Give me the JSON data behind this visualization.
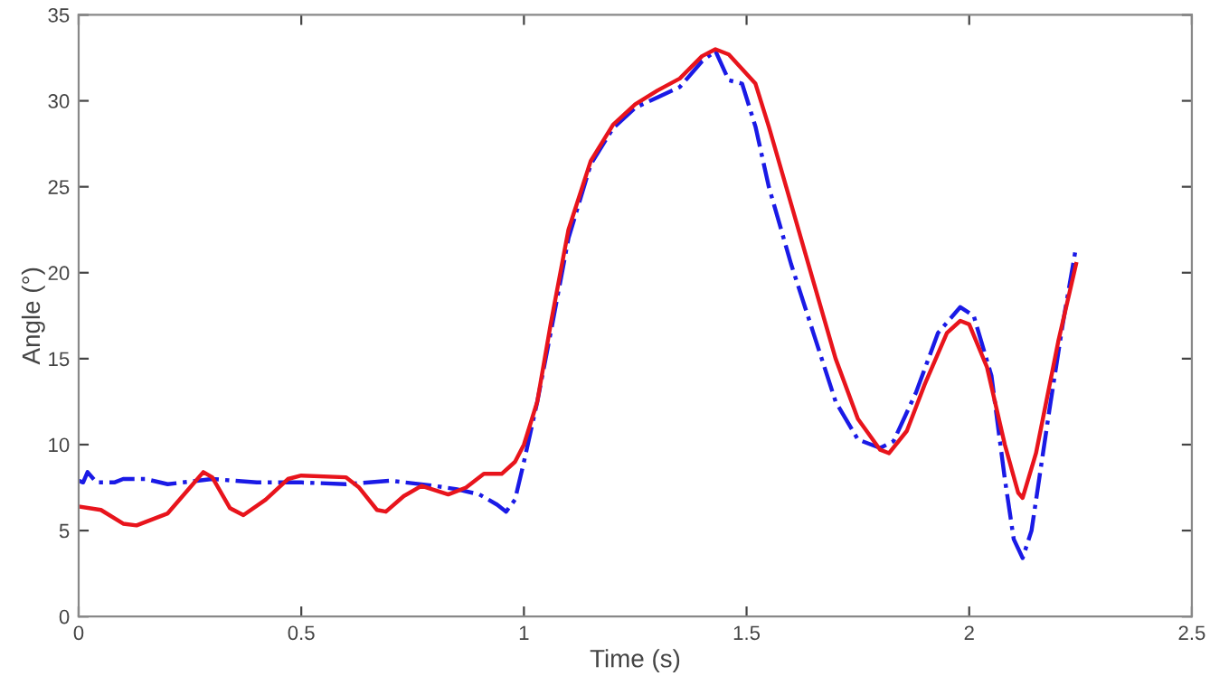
{
  "chart_data": {
    "type": "line",
    "xlabel": "Time (s)",
    "ylabel": "Angle (°)",
    "xlim": [
      0,
      2.5
    ],
    "xticks": [
      0,
      0.5,
      1,
      1.5,
      2,
      2.5
    ],
    "ylim": [
      0,
      35
    ],
    "yticks": [
      0,
      5,
      10,
      15,
      20,
      25,
      30,
      35
    ],
    "grid": false,
    "legend": false,
    "marker": "none",
    "series": [
      {
        "color": "#1a1ae6",
        "line_style": "dashed",
        "x": [
          0,
          0.01,
          0.02,
          0.04,
          0.08,
          0.1,
          0.15,
          0.2,
          0.3,
          0.4,
          0.5,
          0.6,
          0.7,
          0.8,
          0.85,
          0.9,
          0.94,
          0.96,
          0.98,
          1.0,
          1.03,
          1.06,
          1.1,
          1.15,
          1.2,
          1.25,
          1.3,
          1.35,
          1.4,
          1.43,
          1.46,
          1.49,
          1.52,
          1.55,
          1.6,
          1.65,
          1.7,
          1.75,
          1.8,
          1.83,
          1.88,
          1.93,
          1.98,
          2.01,
          2.05,
          2.08,
          2.1,
          2.12,
          2.14,
          2.18,
          2.21,
          2.24
        ],
        "values": [
          7.9,
          7.8,
          8.4,
          7.8,
          7.8,
          8.0,
          8.0,
          7.7,
          8.0,
          7.8,
          7.8,
          7.7,
          7.9,
          7.6,
          7.4,
          7.1,
          6.5,
          6.1,
          6.8,
          9.0,
          12.5,
          16.5,
          22.0,
          26.3,
          28.4,
          29.6,
          30.2,
          30.8,
          32.3,
          32.9,
          31.2,
          31.0,
          28.5,
          25.0,
          20.5,
          16.5,
          12.5,
          10.3,
          9.8,
          10.2,
          13.0,
          16.5,
          18.0,
          17.5,
          14.0,
          8.0,
          4.5,
          3.4,
          5.0,
          12.0,
          17.0,
          21.5
        ]
      },
      {
        "color": "#e8141c",
        "line_style": "solid",
        "x": [
          0,
          0.05,
          0.1,
          0.13,
          0.2,
          0.25,
          0.28,
          0.3,
          0.34,
          0.37,
          0.42,
          0.47,
          0.5,
          0.6,
          0.63,
          0.67,
          0.69,
          0.73,
          0.77,
          0.83,
          0.87,
          0.91,
          0.95,
          0.98,
          1.0,
          1.03,
          1.06,
          1.1,
          1.15,
          1.2,
          1.25,
          1.3,
          1.35,
          1.4,
          1.43,
          1.46,
          1.52,
          1.55,
          1.6,
          1.65,
          1.7,
          1.75,
          1.8,
          1.82,
          1.86,
          1.9,
          1.95,
          1.98,
          2.0,
          2.04,
          2.08,
          2.11,
          2.12,
          2.15,
          2.2,
          2.24
        ],
        "values": [
          6.4,
          6.2,
          5.4,
          5.3,
          6.0,
          7.5,
          8.4,
          8.1,
          6.3,
          5.9,
          6.8,
          8.0,
          8.2,
          8.1,
          7.5,
          6.2,
          6.1,
          7.0,
          7.6,
          7.1,
          7.5,
          8.3,
          8.3,
          9.0,
          10.0,
          12.5,
          17.0,
          22.5,
          26.5,
          28.6,
          29.8,
          30.6,
          31.3,
          32.6,
          33.0,
          32.7,
          31.0,
          28.5,
          24.0,
          19.5,
          15.0,
          11.5,
          9.7,
          9.5,
          10.8,
          13.5,
          16.5,
          17.2,
          17.0,
          14.5,
          10.0,
          7.2,
          6.9,
          9.5,
          16.0,
          20.5
        ]
      }
    ]
  }
}
